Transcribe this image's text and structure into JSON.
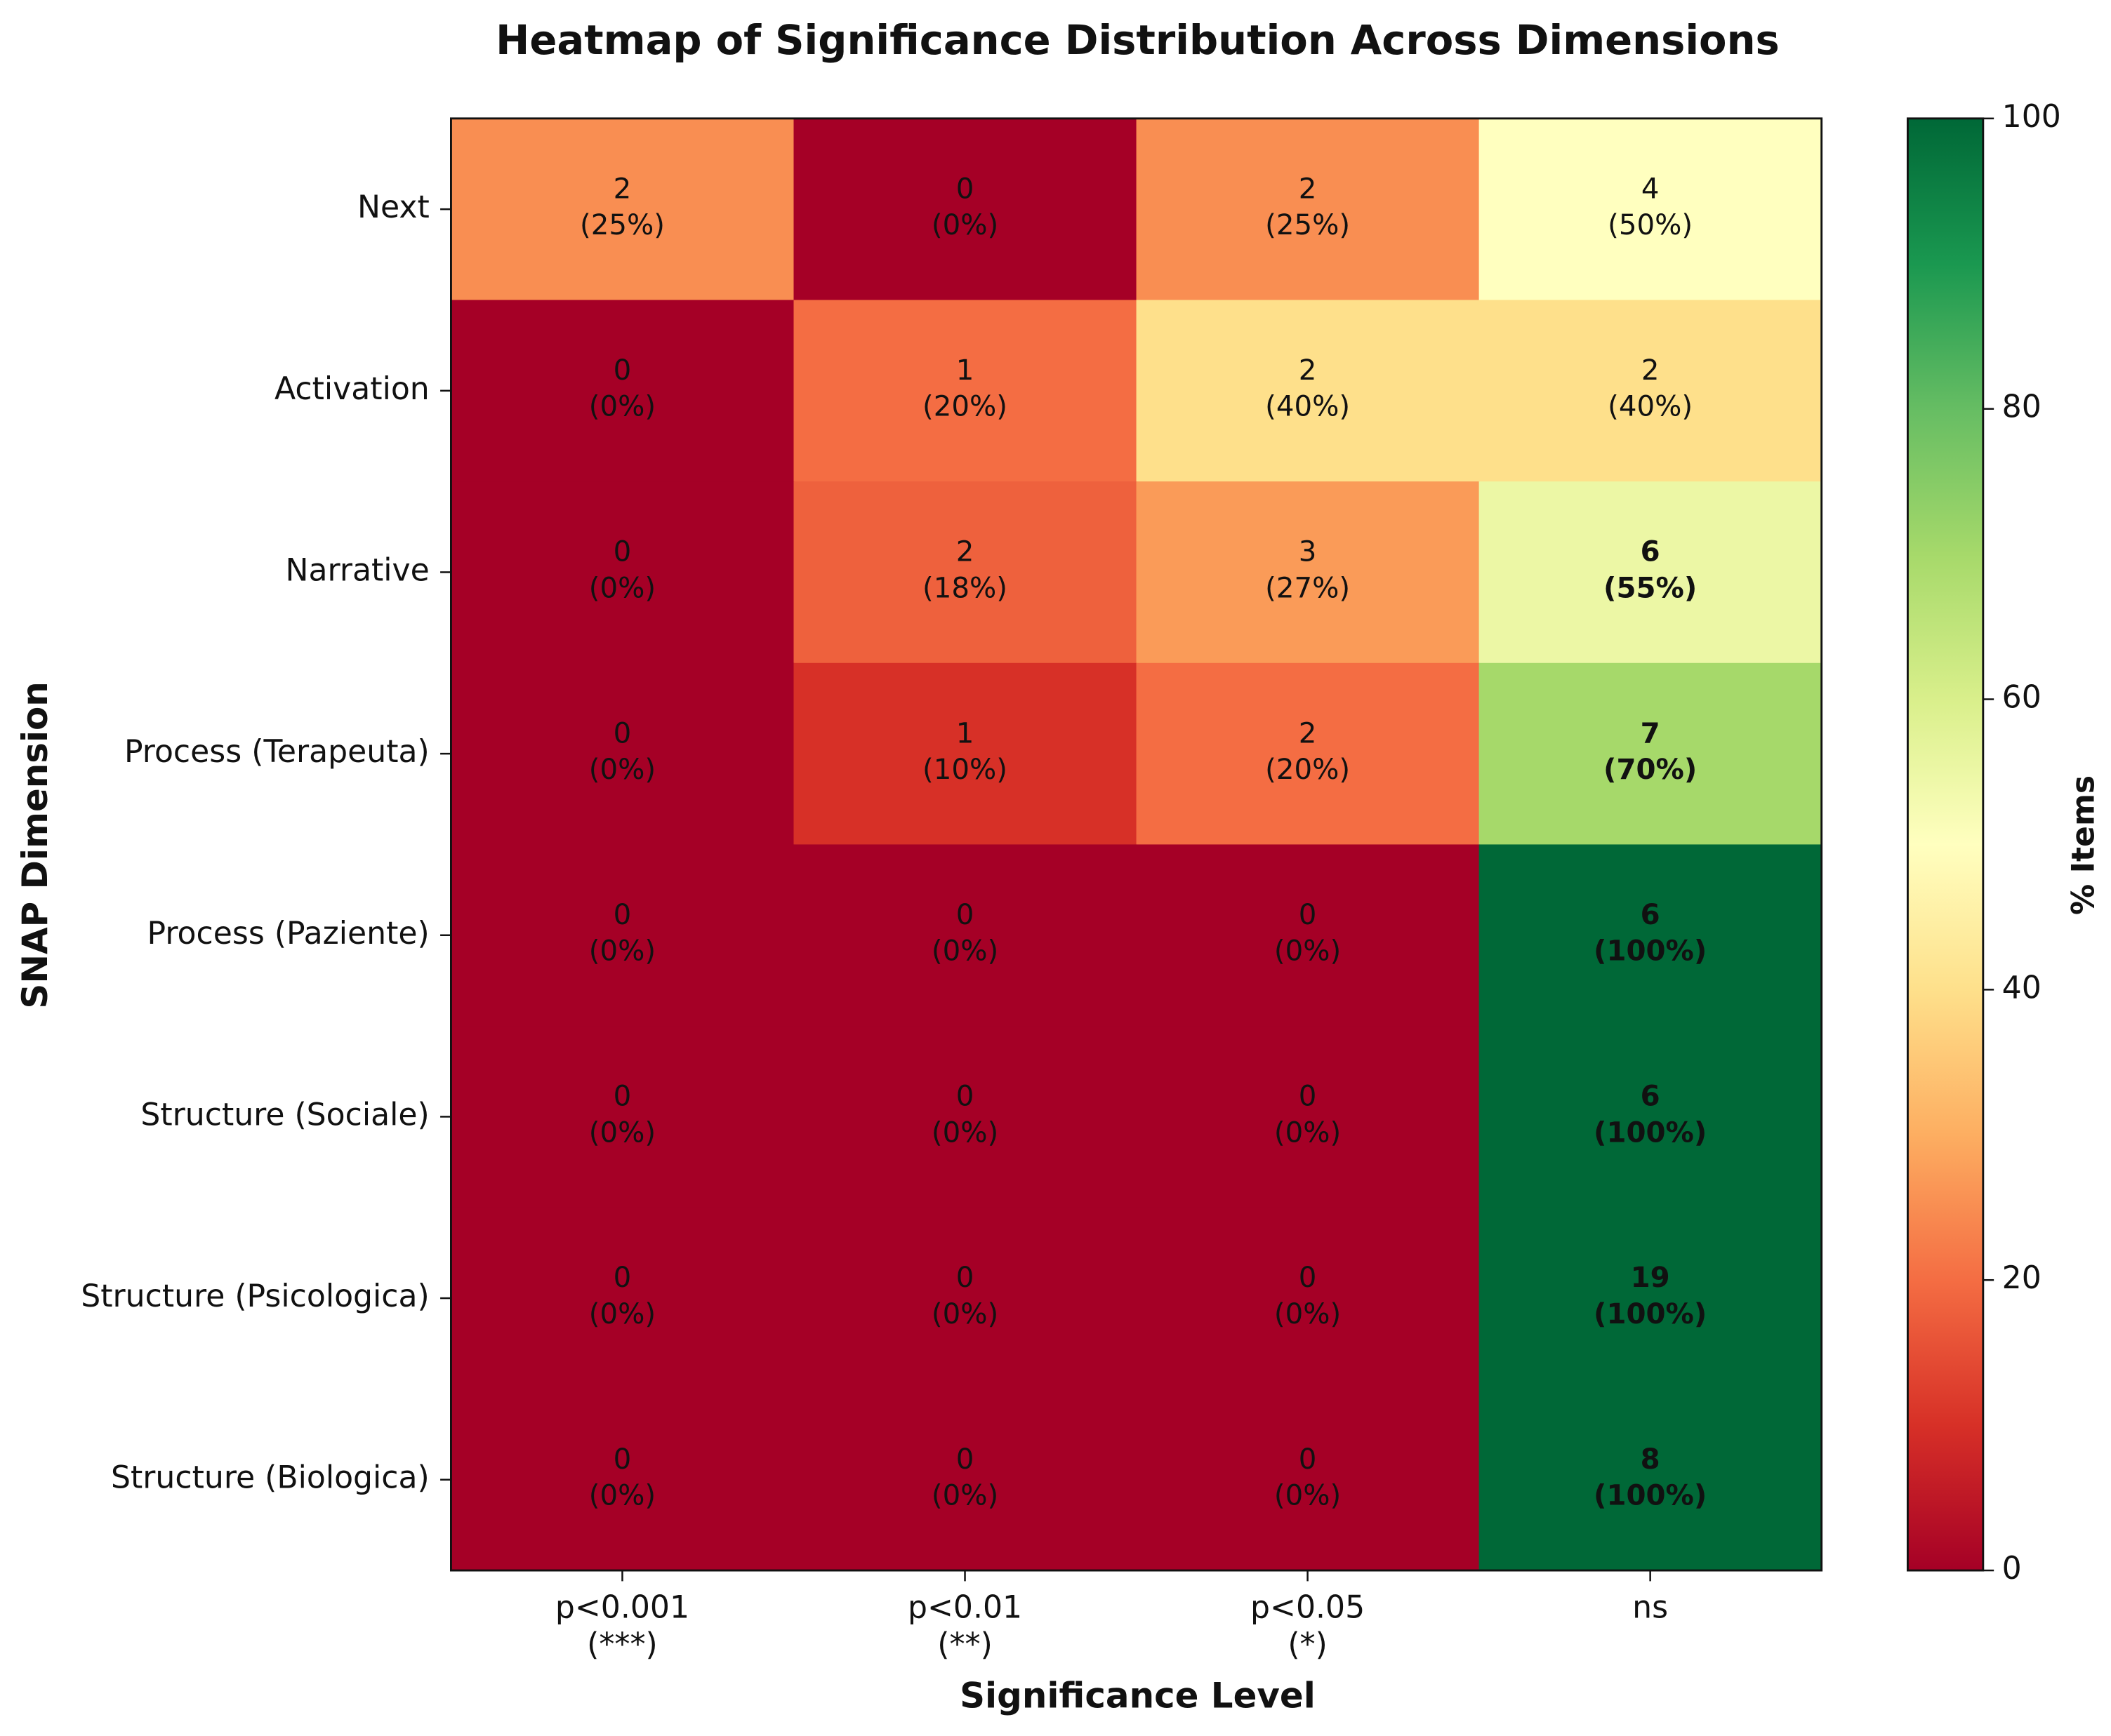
{
  "chart_data": {
    "type": "heatmap",
    "title": "Heatmap of Significance Distribution Across Dimensions",
    "xlabel": "Significance Level",
    "ylabel": "SNAP Dimension",
    "categories": [
      [
        "p<0.001",
        "(***)"
      ],
      [
        "p<0.01",
        "(**)"
      ],
      [
        "p<0.05",
        "(*)"
      ],
      [
        "ns"
      ]
    ],
    "rows": [
      "Next",
      "Activation",
      "Narrative",
      "Process (Terapeuta)",
      "Process (Paziente)",
      "Structure (Sociale)",
      "Structure (Psicologica)",
      "Structure (Biologica)"
    ],
    "counts": [
      [
        2,
        0,
        2,
        4
      ],
      [
        0,
        1,
        2,
        2
      ],
      [
        0,
        2,
        3,
        6
      ],
      [
        0,
        1,
        2,
        7
      ],
      [
        0,
        0,
        0,
        6
      ],
      [
        0,
        0,
        0,
        6
      ],
      [
        0,
        0,
        0,
        19
      ],
      [
        0,
        0,
        0,
        8
      ]
    ],
    "values": [
      [
        25,
        0,
        25,
        50
      ],
      [
        0,
        20,
        40,
        40
      ],
      [
        0,
        18,
        27,
        55
      ],
      [
        0,
        10,
        20,
        70
      ],
      [
        0,
        0,
        0,
        100
      ],
      [
        0,
        0,
        0,
        100
      ],
      [
        0,
        0,
        0,
        100
      ],
      [
        0,
        0,
        0,
        100
      ]
    ],
    "value_labels": [
      [
        "(25%)",
        "(0%)",
        "(25%)",
        "(50%)"
      ],
      [
        "(0%)",
        "(20%)",
        "(40%)",
        "(40%)"
      ],
      [
        "(0%)",
        "(18%)",
        "(27%)",
        "(55%)"
      ],
      [
        "(0%)",
        "(10%)",
        "(20%)",
        "(70%)"
      ],
      [
        "(0%)",
        "(0%)",
        "(0%)",
        "(100%)"
      ],
      [
        "(0%)",
        "(0%)",
        "(0%)",
        "(100%)"
      ],
      [
        "(0%)",
        "(0%)",
        "(0%)",
        "(100%)"
      ],
      [
        "(0%)",
        "(0%)",
        "(0%)",
        "(100%)"
      ]
    ],
    "colormap": "RdYlGn",
    "zlim": [
      0,
      100
    ],
    "zticks": [
      0,
      20,
      40,
      60,
      80,
      100
    ],
    "colorbar_label": "% Items"
  }
}
